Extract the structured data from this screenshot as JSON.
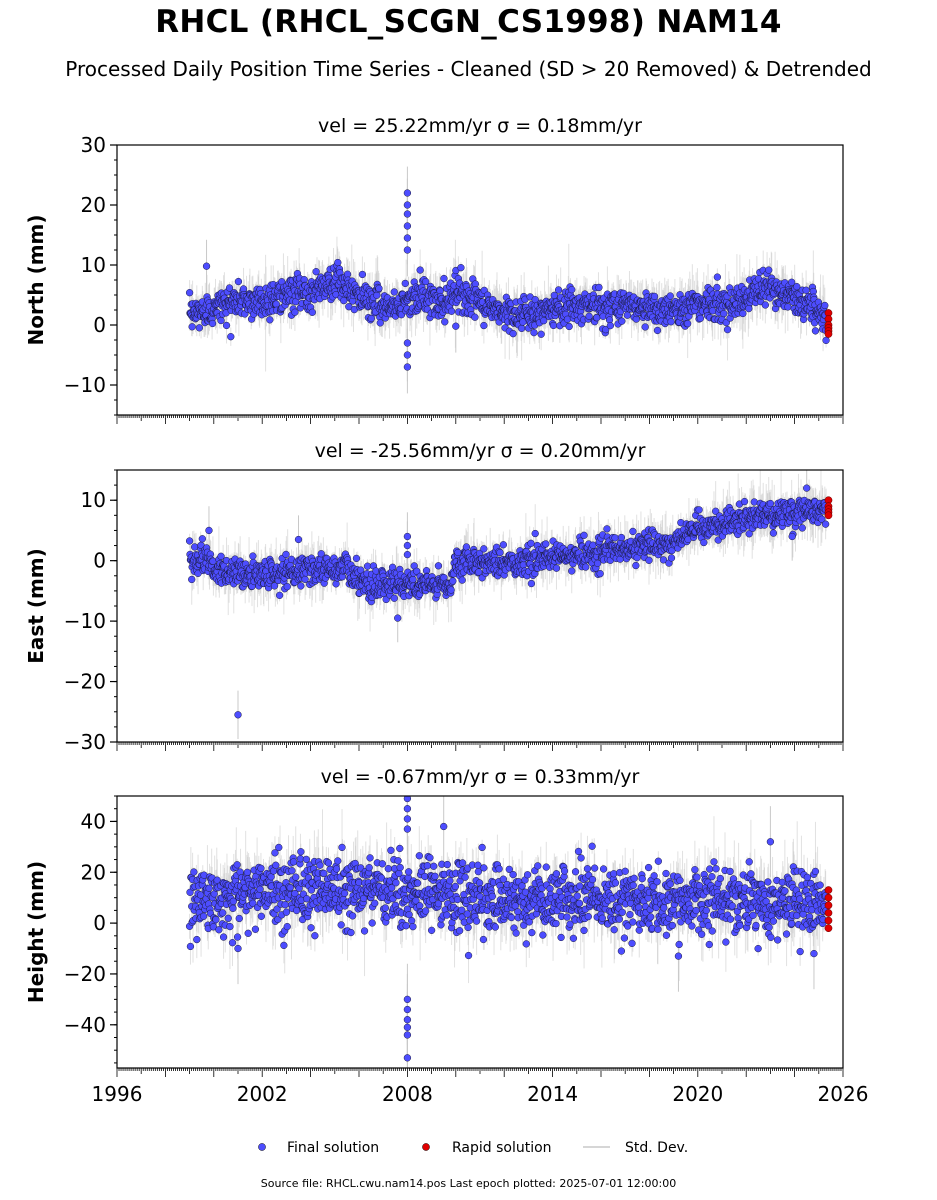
{
  "figure": {
    "title": "RHCL (RHCL_SCGN_CS1998) NAM14",
    "subtitle": "Processed Daily Position Time Series - Cleaned (SD > 20 Removed) & Detrended",
    "source_note": "Source file: RHCL.cwu.nam14.pos  Last epoch plotted: 2025-07-01 12:00:00"
  },
  "colors": {
    "final": "#4d4dff",
    "rapid": "#e00000",
    "stddev": "#c8c8c8",
    "marker_edge": "#1a1a3a"
  },
  "chart_data": [
    {
      "type": "scatter",
      "title": "vel = 25.22mm/yr   σ = 0.18mm/yr",
      "ylabel": "North (mm)",
      "xlim": [
        1996,
        2026
      ],
      "ylim": [
        -15,
        30
      ],
      "yticks": [
        -10,
        0,
        10,
        20,
        30
      ],
      "yticklabels": [
        "−10",
        "0",
        "10",
        "20",
        "30"
      ],
      "x_range": [
        1999.0,
        2025.3
      ],
      "rapid_x_range": [
        2025.3,
        2025.5
      ],
      "trend": [
        [
          1999.0,
          1.5
        ],
        [
          2000.0,
          3.0
        ],
        [
          2001.0,
          4.0
        ],
        [
          2002.0,
          4.0
        ],
        [
          2003.0,
          5.0
        ],
        [
          2004.0,
          5.5
        ],
        [
          2005.0,
          7.5
        ],
        [
          2005.8,
          5.0
        ],
        [
          2006.5,
          4.0
        ],
        [
          2007.0,
          3.5
        ],
        [
          2007.5,
          3.0
        ],
        [
          2008.0,
          4.5
        ],
        [
          2008.5,
          5.0
        ],
        [
          2009.0,
          4.0
        ],
        [
          2009.5,
          3.5
        ],
        [
          2010.0,
          6.0
        ],
        [
          2011.0,
          3.5
        ],
        [
          2012.0,
          2.0
        ],
        [
          2013.0,
          1.5
        ],
        [
          2014.0,
          2.5
        ],
        [
          2015.0,
          3.5
        ],
        [
          2016.0,
          3.0
        ],
        [
          2017.0,
          3.5
        ],
        [
          2018.0,
          3.0
        ],
        [
          2019.0,
          2.5
        ],
        [
          2020.0,
          3.5
        ],
        [
          2021.0,
          3.5
        ],
        [
          2022.0,
          4.5
        ],
        [
          2023.0,
          6.5
        ],
        [
          2023.5,
          5.0
        ],
        [
          2024.0,
          4.5
        ],
        [
          2024.5,
          3.5
        ],
        [
          2025.0,
          2.0
        ],
        [
          2025.3,
          0.5
        ]
      ],
      "scatter_sd": 1.4,
      "errbar_sd": 2.2,
      "outliers": [
        [
          1999.7,
          9.8
        ],
        [
          2008.0,
          22.0
        ],
        [
          2008.0,
          20.0
        ],
        [
          2008.0,
          18.5
        ],
        [
          2008.0,
          16.5
        ],
        [
          2008.0,
          14.5
        ],
        [
          2008.0,
          12.5
        ],
        [
          2008.0,
          -3.0
        ],
        [
          2008.0,
          -5.0
        ],
        [
          2008.0,
          -7.0
        ],
        [
          2010.0,
          -0.2
        ]
      ],
      "rapid_points": [
        [
          2025.4,
          2.0
        ],
        [
          2025.4,
          1.0
        ],
        [
          2025.4,
          0.0
        ],
        [
          2025.4,
          -0.5
        ],
        [
          2025.4,
          -1.0
        ],
        [
          2025.4,
          -1.5
        ]
      ]
    },
    {
      "type": "scatter",
      "title": "vel = -25.56mm/yr   σ = 0.20mm/yr",
      "ylabel": "East (mm)",
      "xlim": [
        1996,
        2026
      ],
      "ylim": [
        -30,
        15
      ],
      "yticks": [
        -30,
        -20,
        -10,
        0,
        10
      ],
      "yticklabels": [
        "−30",
        "−20",
        "−10",
        "0",
        "10"
      ],
      "x_range": [
        1999.0,
        2025.3
      ],
      "rapid_x_range": [
        2025.3,
        2025.5
      ],
      "trend": [
        [
          1999.0,
          0.5
        ],
        [
          1999.8,
          0.0
        ],
        [
          2000.0,
          -1.5
        ],
        [
          2001.0,
          -2.0
        ],
        [
          2002.0,
          -2.5
        ],
        [
          2003.0,
          -2.0
        ],
        [
          2004.0,
          -1.5
        ],
        [
          2005.0,
          -1.5
        ],
        [
          2005.5,
          -1.0
        ],
        [
          2006.0,
          -3.0
        ],
        [
          2006.5,
          -4.5
        ],
        [
          2007.0,
          -3.5
        ],
        [
          2007.5,
          -4.0
        ],
        [
          2008.0,
          -3.5
        ],
        [
          2008.5,
          -4.0
        ],
        [
          2009.0,
          -4.0
        ],
        [
          2009.8,
          -4.5
        ],
        [
          2010.0,
          0.0
        ],
        [
          2011.0,
          0.0
        ],
        [
          2012.0,
          -0.5
        ],
        [
          2013.0,
          0.0
        ],
        [
          2014.0,
          0.5
        ],
        [
          2015.0,
          1.0
        ],
        [
          2016.0,
          1.5
        ],
        [
          2017.0,
          2.0
        ],
        [
          2018.0,
          2.5
        ],
        [
          2019.0,
          3.0
        ],
        [
          2019.5,
          4.0
        ],
        [
          2020.0,
          5.5
        ],
        [
          2021.0,
          6.0
        ],
        [
          2022.0,
          7.0
        ],
        [
          2023.0,
          7.5
        ],
        [
          2024.0,
          8.0
        ],
        [
          2025.3,
          8.5
        ]
      ],
      "scatter_sd": 1.2,
      "errbar_sd": 2.0,
      "outliers": [
        [
          1999.8,
          5.0
        ],
        [
          2001.0,
          -25.5
        ],
        [
          2003.5,
          3.5
        ],
        [
          2008.0,
          4.0
        ],
        [
          2008.0,
          2.5
        ],
        [
          2008.0,
          1.0
        ],
        [
          2007.6,
          -9.5
        ],
        [
          2023.9,
          4.0
        ],
        [
          2024.5,
          12.0
        ]
      ],
      "rapid_points": [
        [
          2025.4,
          10.0
        ],
        [
          2025.4,
          9.0
        ],
        [
          2025.4,
          8.5
        ],
        [
          2025.4,
          8.0
        ],
        [
          2025.4,
          7.5
        ]
      ]
    },
    {
      "type": "scatter",
      "title": "vel = -0.67mm/yr   σ = 0.33mm/yr",
      "ylabel": "Height (mm)",
      "xlim": [
        1996,
        2026
      ],
      "ylim": [
        -57,
        50
      ],
      "yticks": [
        -40,
        -20,
        0,
        20,
        40
      ],
      "yticklabels": [
        "−40",
        "−20",
        "0",
        "20",
        "40"
      ],
      "xticks": [
        1996,
        2002,
        2008,
        2014,
        2020,
        2026
      ],
      "xticklabels": [
        "1996",
        "2002",
        "2008",
        "2014",
        "2020",
        "2026"
      ],
      "x_range": [
        1999.0,
        2025.3
      ],
      "rapid_x_range": [
        2025.3,
        2025.5
      ],
      "trend": [
        [
          1999.0,
          8.0
        ],
        [
          2001.0,
          12.0
        ],
        [
          2003.0,
          13.0
        ],
        [
          2005.0,
          13.0
        ],
        [
          2007.0,
          12.0
        ],
        [
          2009.0,
          13.0
        ],
        [
          2011.0,
          10.0
        ],
        [
          2013.0,
          9.0
        ],
        [
          2015.0,
          9.0
        ],
        [
          2017.0,
          9.0
        ],
        [
          2019.0,
          8.5
        ],
        [
          2021.0,
          9.0
        ],
        [
          2023.0,
          9.0
        ],
        [
          2025.3,
          7.0
        ]
      ],
      "scatter_sd": 6.5,
      "errbar_sd": 7.0,
      "outliers": [
        [
          2008.0,
          49.0
        ],
        [
          2008.0,
          45.0
        ],
        [
          2008.0,
          41.0
        ],
        [
          2008.0,
          37.0
        ],
        [
          2008.0,
          -30.0
        ],
        [
          2008.0,
          -34.0
        ],
        [
          2008.0,
          -38.0
        ],
        [
          2008.0,
          -41.0
        ],
        [
          2008.0,
          -44.0
        ],
        [
          2008.0,
          -53.0
        ],
        [
          2009.5,
          38.0
        ],
        [
          2023.0,
          32.0
        ],
        [
          2024.8,
          -12.0
        ],
        [
          2001.0,
          -10.0
        ],
        [
          2019.2,
          -13.0
        ]
      ],
      "rapid_points": [
        [
          2025.4,
          13.0
        ],
        [
          2025.4,
          10.0
        ],
        [
          2025.4,
          7.0
        ],
        [
          2025.4,
          4.0
        ],
        [
          2025.4,
          1.0
        ],
        [
          2025.4,
          -2.0
        ]
      ]
    }
  ],
  "legend": {
    "position": "bottom-center",
    "items": [
      {
        "label": "Final solution",
        "kind": "marker",
        "color": "#4d4dff"
      },
      {
        "label": "Rapid solution",
        "kind": "marker",
        "color": "#e00000"
      },
      {
        "label": "Std. Dev.",
        "kind": "line",
        "color": "#c8c8c8"
      }
    ]
  }
}
